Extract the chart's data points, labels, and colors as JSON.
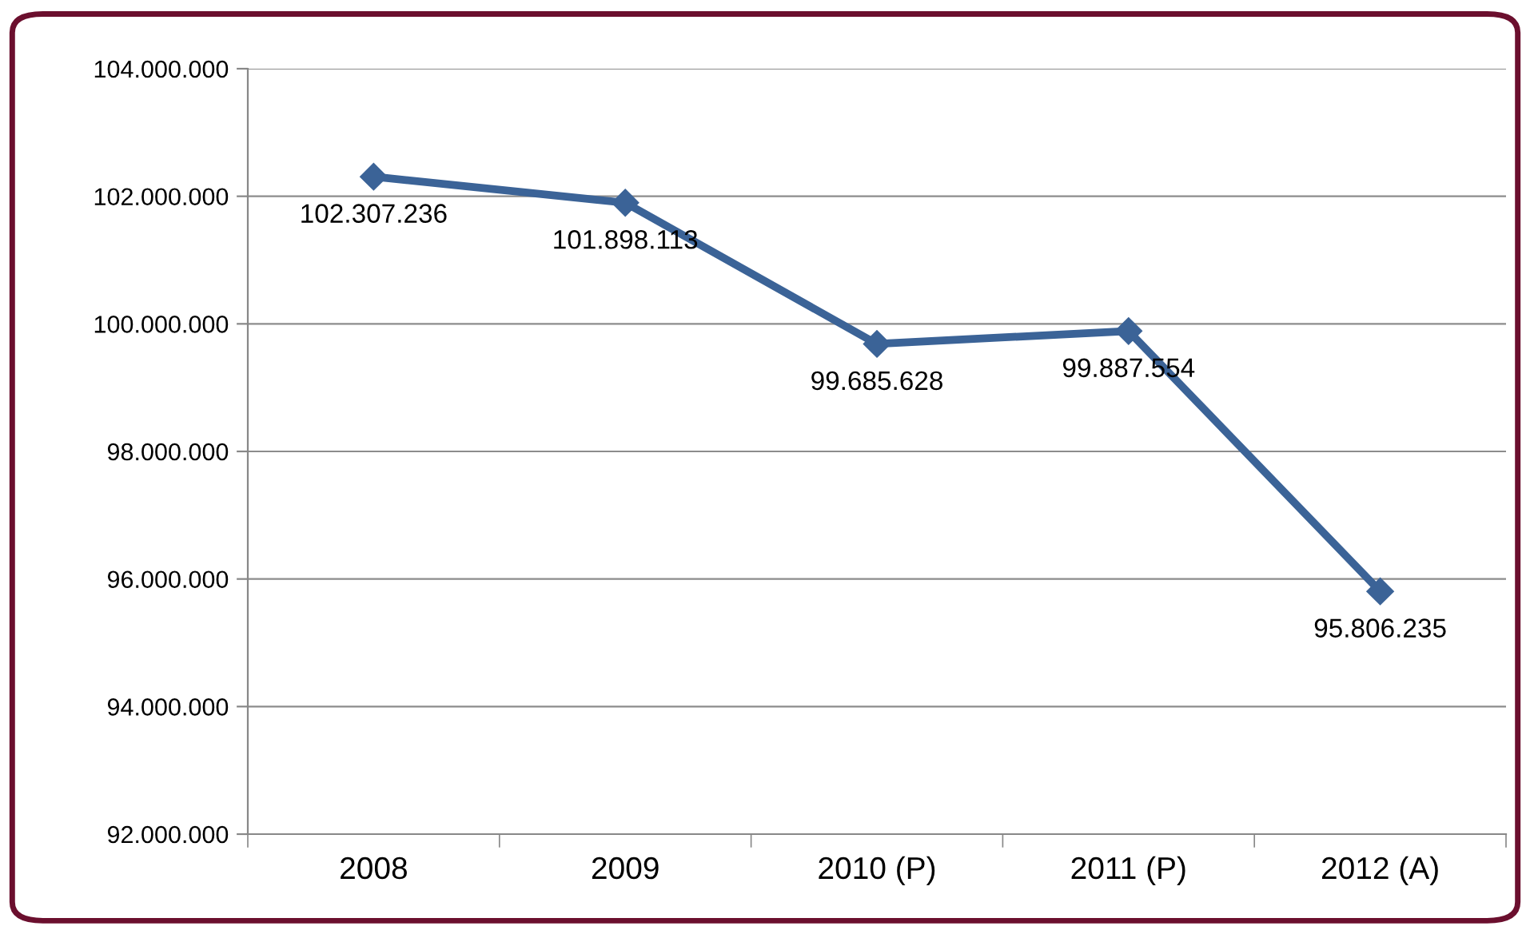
{
  "chart_data": {
    "type": "line",
    "categories": [
      "2008",
      "2009",
      "2010 (P)",
      "2011 (P)",
      "2012 (A)"
    ],
    "series": [
      {
        "color": "#3b6397",
        "values": [
          102307236,
          101898113,
          99685628,
          99887554,
          95806235
        ],
        "value_labels": [
          "102.307.236",
          "101.898.113",
          "99.685.628",
          "99.887.554",
          "95.806.235"
        ]
      }
    ],
    "ylim": [
      92000000,
      104000000
    ],
    "yticks": [
      {
        "value": 92000000,
        "label": "92.000.000"
      },
      {
        "value": 94000000,
        "label": "94.000.000"
      },
      {
        "value": 96000000,
        "label": "96.000.000"
      },
      {
        "value": 98000000,
        "label": "98.000.000"
      },
      {
        "value": 100000000,
        "label": "100.000.000"
      },
      {
        "value": 102000000,
        "label": "102.000.000"
      },
      {
        "value": 104000000,
        "label": "104.000.000"
      }
    ],
    "grid": "y",
    "marker": "diamond",
    "line_style": "solid"
  }
}
